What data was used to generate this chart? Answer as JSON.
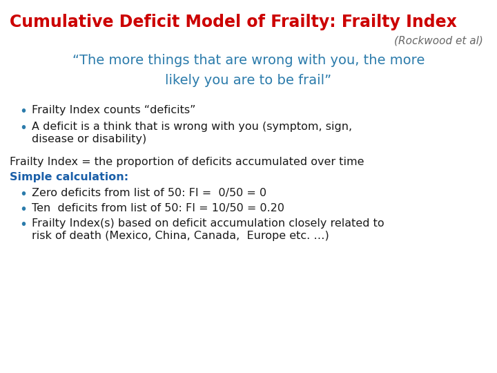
{
  "title": "Cumulative Deficit Model of Frailty: Frailty Index",
  "subtitle": "(Rockwood et al)",
  "quote_line1": "“The more things that are wrong with you, the more",
  "quote_line2": "likely you are to be frail”",
  "bullet1": "Frailty Index counts “deficits”",
  "bullet2a": "A deficit is a think that is wrong with you (symptom, sign,",
  "bullet2b": "disease or disability)",
  "para1": "Frailty Index = the proportion of deficits accumulated over time",
  "simple_calc": "Simple calculation:",
  "bullet3": "Zero deficits from list of 50: FI =  0/50 = 0",
  "bullet4": "Ten  deficits from list of 50: FI = 10/50 = 0.20",
  "bullet5a": "Frailty Index(s) based on deficit accumulation closely related to",
  "bullet5b": "risk of death (Mexico, China, Canada,  Europe etc. …)",
  "title_color": "#cc0000",
  "subtitle_color": "#666666",
  "quote_color": "#2b7bab",
  "body_color": "#1a1a1a",
  "simple_calc_color": "#1a5fa8",
  "bullet_color": "#2b7bab",
  "bg_color": "#ffffff",
  "title_fontsize": 17,
  "subtitle_fontsize": 11,
  "quote_fontsize": 14,
  "body_fontsize": 11.5,
  "bullet_fontsize": 11.5
}
